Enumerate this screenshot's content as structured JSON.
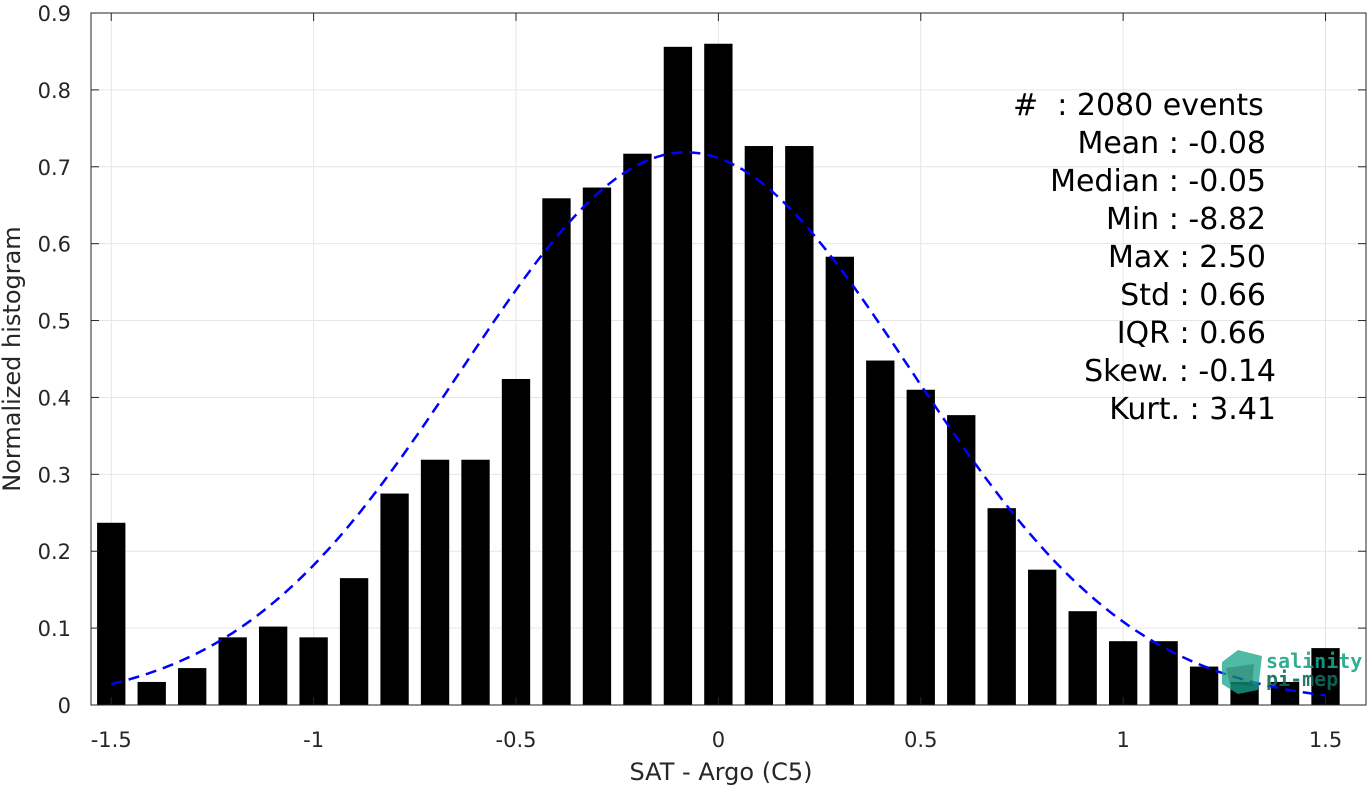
{
  "chart_data": {
    "type": "bar",
    "xlabel": "SAT - Argo (C5)",
    "ylabel": "Normalized histogram",
    "xlim": [
      -1.55,
      1.6
    ],
    "ylim": [
      0,
      0.9
    ],
    "xticks": [
      -1.5,
      -1,
      -0.5,
      0,
      0.5,
      1,
      1.5
    ],
    "xtick_labels": [
      "-1.5",
      "-1",
      "-0.5",
      "0",
      "0.5",
      "1",
      "1.5"
    ],
    "yticks": [
      0,
      0.1,
      0.2,
      0.3,
      0.4,
      0.5,
      0.6,
      0.7,
      0.8,
      0.9
    ],
    "ytick_labels": [
      "0",
      "0.1",
      "0.2",
      "0.3",
      "0.4",
      "0.5",
      "0.6",
      "0.7",
      "0.8",
      "0.9"
    ],
    "grid": true,
    "bar_color": "#000000",
    "bin_width": 0.1,
    "x": [
      -1.5,
      -1.4,
      -1.3,
      -1.2,
      -1.1,
      -1.0,
      -0.9,
      -0.8,
      -0.7,
      -0.6,
      -0.5,
      -0.4,
      -0.3,
      -0.2,
      -0.1,
      0.0,
      0.1,
      0.2,
      0.3,
      0.4,
      0.5,
      0.6,
      0.7,
      0.8,
      0.9,
      1.0,
      1.1,
      1.2,
      1.3,
      1.4,
      1.5
    ],
    "values": [
      0.237,
      0.03,
      0.048,
      0.088,
      0.102,
      0.088,
      0.165,
      0.275,
      0.319,
      0.319,
      0.424,
      0.659,
      0.673,
      0.717,
      0.856,
      0.86,
      0.727,
      0.727,
      0.583,
      0.448,
      0.41,
      0.377,
      0.256,
      0.176,
      0.122,
      0.083,
      0.083,
      0.05,
      0.03,
      0.03,
      0.074
    ],
    "fit": {
      "type": "gaussian",
      "color": "#0000ff",
      "style": "dashed",
      "mean": -0.08,
      "std": 0.555,
      "x_range": [
        -1.5,
        1.5
      ]
    },
    "stats_lines": [
      "#  : 2080 events",
      "Mean : -0.08",
      "Median : -0.05",
      "Min : -8.82",
      "Max : 2.50",
      "Std : 0.66",
      "IQR : 0.66",
      "Skew. : -0.14",
      "Kurt. : 3.41"
    ]
  },
  "logo": {
    "line1": "salinity",
    "line2": "pi-mep",
    "color_primary": "#1aa58a",
    "color_secondary": "#0d6b5a"
  }
}
